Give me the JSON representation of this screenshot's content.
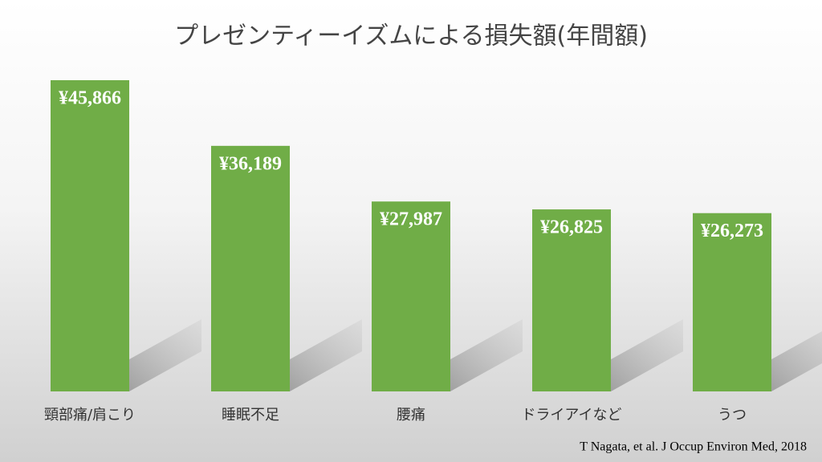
{
  "chart_data": {
    "type": "bar",
    "title": "プレゼンティーイズムによる損失額(年間額)",
    "categories": [
      "頸部痛/肩こり",
      "睡眠不足",
      "腰痛",
      "ドライアイなど",
      "うつ"
    ],
    "values": [
      45866,
      36189,
      27987,
      26825,
      26273
    ],
    "value_labels": [
      "¥45,866",
      "¥36,189",
      "¥27,987",
      "¥26,825",
      "¥26,273"
    ],
    "color": "#70ad47",
    "source": "T Nagata, et al. J Occup Environ Med, 2018"
  }
}
